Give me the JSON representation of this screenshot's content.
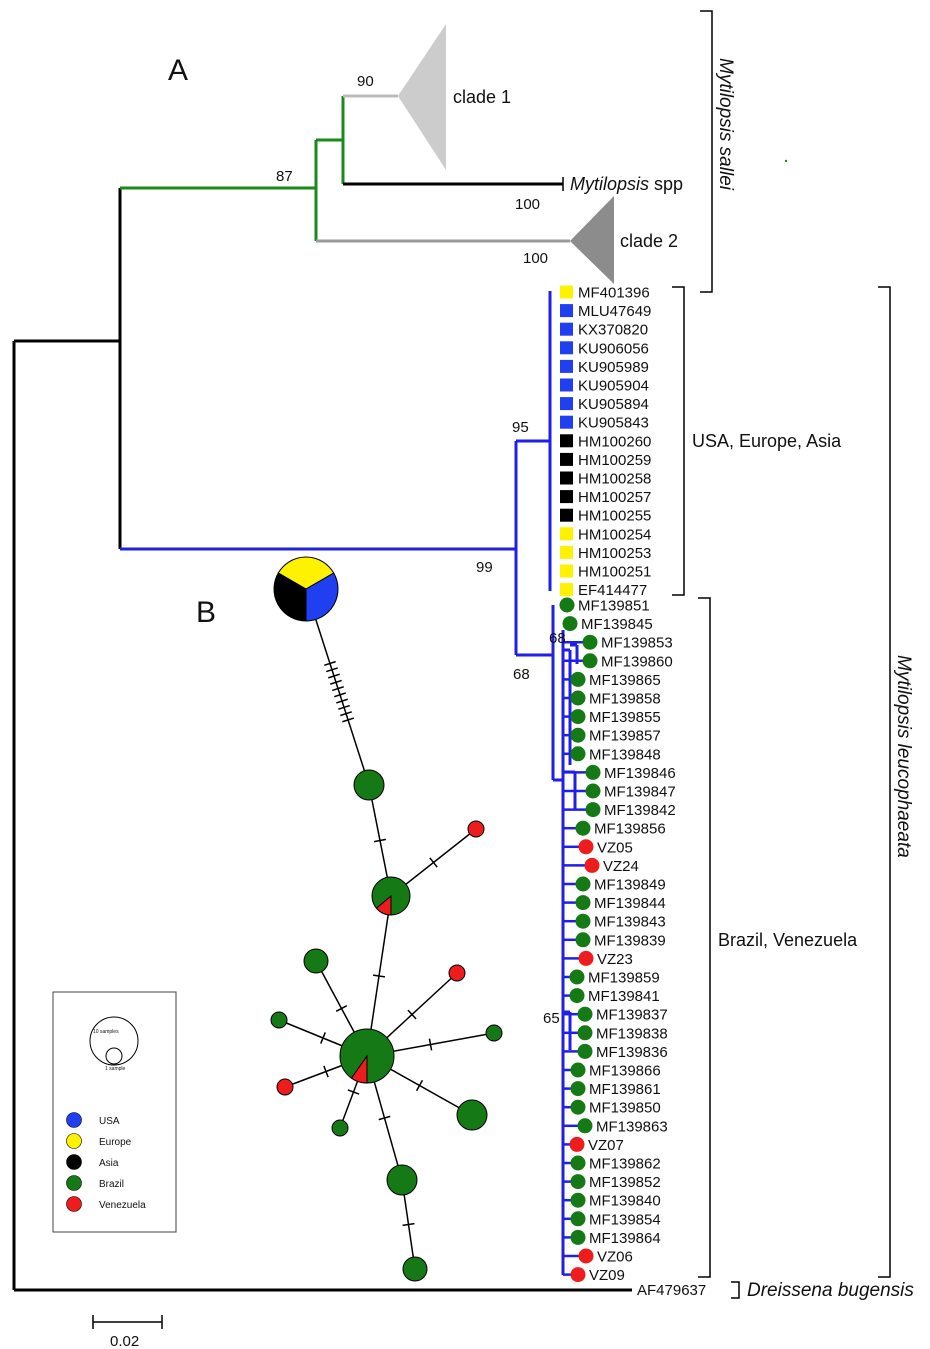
{
  "figure": {
    "panel_a": "A",
    "panel_b": "B",
    "scale_bar_label": "0.02",
    "top_support": {
      "clade1_node": "90",
      "main_node": "87",
      "mspp_branch": "100",
      "clade2_branch": "100",
      "blue_node": "99",
      "usa_clade": "95",
      "brazil_node": "68",
      "brazil_sub": "68",
      "brazil_lower": "65"
    },
    "collapsed_clades": [
      "clade 1",
      "clade 2"
    ],
    "mytilopsis_spp": {
      "genus": "Mytilopsis",
      "suffix": "spp"
    },
    "species_brackets": {
      "sallei": "Mytilopsis sallei",
      "leucophaeata": "Mytilopsis leucophaeata",
      "dreissena": "Dreissena bugensis"
    },
    "group_labels": {
      "usa_europe_asia": "USA, Europe, Asia",
      "brazil_venezuela": "Brazil, Venezuela"
    },
    "outgroup": "AF479637",
    "colors": {
      "usa": "#1f3ff0",
      "europe": "#fff200",
      "asia": "#000000",
      "brazil": "#157a15",
      "venezuela": "#ee1c1c",
      "green_branch": "#1b8a1b",
      "blue_branch": "#1f1fe8",
      "clade1_fill": "#cccccc",
      "clade2_fill": "#8c8c8c"
    },
    "taxa_usa": [
      {
        "id": "MF401396",
        "region": "europe"
      },
      {
        "id": "MLU47649",
        "region": "usa"
      },
      {
        "id": "KX370820",
        "region": "usa"
      },
      {
        "id": "KU906056",
        "region": "usa"
      },
      {
        "id": "KU905989",
        "region": "usa"
      },
      {
        "id": "KU905904",
        "region": "usa"
      },
      {
        "id": "KU905894",
        "region": "usa"
      },
      {
        "id": "KU905843",
        "region": "usa"
      },
      {
        "id": "HM100260",
        "region": "asia"
      },
      {
        "id": "HM100259",
        "region": "asia"
      },
      {
        "id": "HM100258",
        "region": "asia"
      },
      {
        "id": "HM100257",
        "region": "asia"
      },
      {
        "id": "HM100255",
        "region": "asia"
      },
      {
        "id": "HM100254",
        "region": "europe"
      },
      {
        "id": "HM100253",
        "region": "europe"
      },
      {
        "id": "HM100251",
        "region": "europe"
      },
      {
        "id": "EF414477",
        "region": "europe"
      }
    ],
    "taxa_brazil": [
      {
        "id": "MF139851",
        "region": "brazil"
      },
      {
        "id": "MF139845",
        "region": "brazil"
      },
      {
        "id": "MF139853",
        "region": "brazil"
      },
      {
        "id": "MF139860",
        "region": "brazil"
      },
      {
        "id": "MF139865",
        "region": "brazil"
      },
      {
        "id": "MF139858",
        "region": "brazil"
      },
      {
        "id": "MF139855",
        "region": "brazil"
      },
      {
        "id": "MF139857",
        "region": "brazil"
      },
      {
        "id": "MF139848",
        "region": "brazil"
      },
      {
        "id": "MF139846",
        "region": "brazil"
      },
      {
        "id": "MF139847",
        "region": "brazil"
      },
      {
        "id": "MF139842",
        "region": "brazil"
      },
      {
        "id": "MF139856",
        "region": "brazil"
      },
      {
        "id": "VZ05",
        "region": "venezuela"
      },
      {
        "id": "VZ24",
        "region": "venezuela"
      },
      {
        "id": "MF139849",
        "region": "brazil"
      },
      {
        "id": "MF139844",
        "region": "brazil"
      },
      {
        "id": "MF139843",
        "region": "brazil"
      },
      {
        "id": "MF139839",
        "region": "brazil"
      },
      {
        "id": "VZ23",
        "region": "venezuela"
      },
      {
        "id": "MF139859",
        "region": "brazil"
      },
      {
        "id": "MF139841",
        "region": "brazil"
      },
      {
        "id": "MF139837",
        "region": "brazil"
      },
      {
        "id": "MF139838",
        "region": "brazil"
      },
      {
        "id": "MF139836",
        "region": "brazil"
      },
      {
        "id": "MF139866",
        "region": "brazil"
      },
      {
        "id": "MF139861",
        "region": "brazil"
      },
      {
        "id": "MF139850",
        "region": "brazil"
      },
      {
        "id": "MF139863",
        "region": "brazil"
      },
      {
        "id": "VZ07",
        "region": "venezuela"
      },
      {
        "id": "MF139862",
        "region": "brazil"
      },
      {
        "id": "MF139852",
        "region": "brazil"
      },
      {
        "id": "MF139840",
        "region": "brazil"
      },
      {
        "id": "MF139854",
        "region": "brazil"
      },
      {
        "id": "MF139864",
        "region": "brazil"
      },
      {
        "id": "VZ06",
        "region": "venezuela"
      },
      {
        "id": "VZ09",
        "region": "venezuela"
      }
    ],
    "legend": {
      "size_large": "10 samples",
      "size_small": "1 sample",
      "items": [
        {
          "label": "USA",
          "region": "usa"
        },
        {
          "label": "Europe",
          "region": "europe"
        },
        {
          "label": "Asia",
          "region": "asia"
        },
        {
          "label": "Brazil",
          "region": "brazil"
        },
        {
          "label": "Venezuela",
          "region": "venezuela"
        }
      ]
    }
  }
}
